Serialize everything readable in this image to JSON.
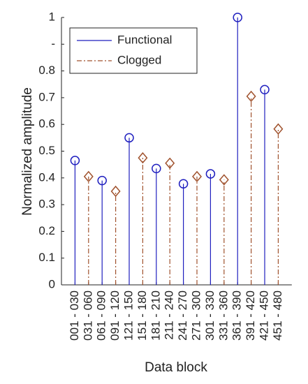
{
  "chart_data": {
    "type": "stem",
    "categories": [
      "001 - 030",
      "031 - 060",
      "061 - 090",
      "091 - 120",
      "121 - 150",
      "151 - 180",
      "181 - 210",
      "211 - 240",
      "241 - 270",
      "271 - 300",
      "301 - 330",
      "331 - 360",
      "361 - 390",
      "391 - 420",
      "421 - 450",
      "451 - 480"
    ],
    "series": [
      {
        "name": "Functional",
        "color": "#1f1fbf",
        "marker": "circle",
        "linestyle": "solid",
        "values": [
          0.465,
          null,
          0.39,
          null,
          0.55,
          null,
          0.435,
          null,
          0.378,
          null,
          0.415,
          null,
          1.0,
          null,
          0.73,
          null
        ]
      },
      {
        "name": "Clogged",
        "color": "#a0522d",
        "marker": "diamond",
        "linestyle": "dashdot",
        "values": [
          null,
          0.405,
          null,
          0.35,
          null,
          0.475,
          null,
          0.455,
          null,
          0.405,
          null,
          0.393,
          null,
          0.705,
          null,
          0.583
        ]
      }
    ],
    "xlabel": "Data block",
    "ylabel": "Normalized amplitude",
    "ylim": [
      0,
      1
    ],
    "yticks": [
      0,
      0.1,
      0.2,
      0.3,
      0.4,
      0.5,
      0.6,
      0.7,
      0.8,
      {
        "value": 0.9,
        "label": "-"
      },
      1
    ],
    "legend": "upper left"
  }
}
